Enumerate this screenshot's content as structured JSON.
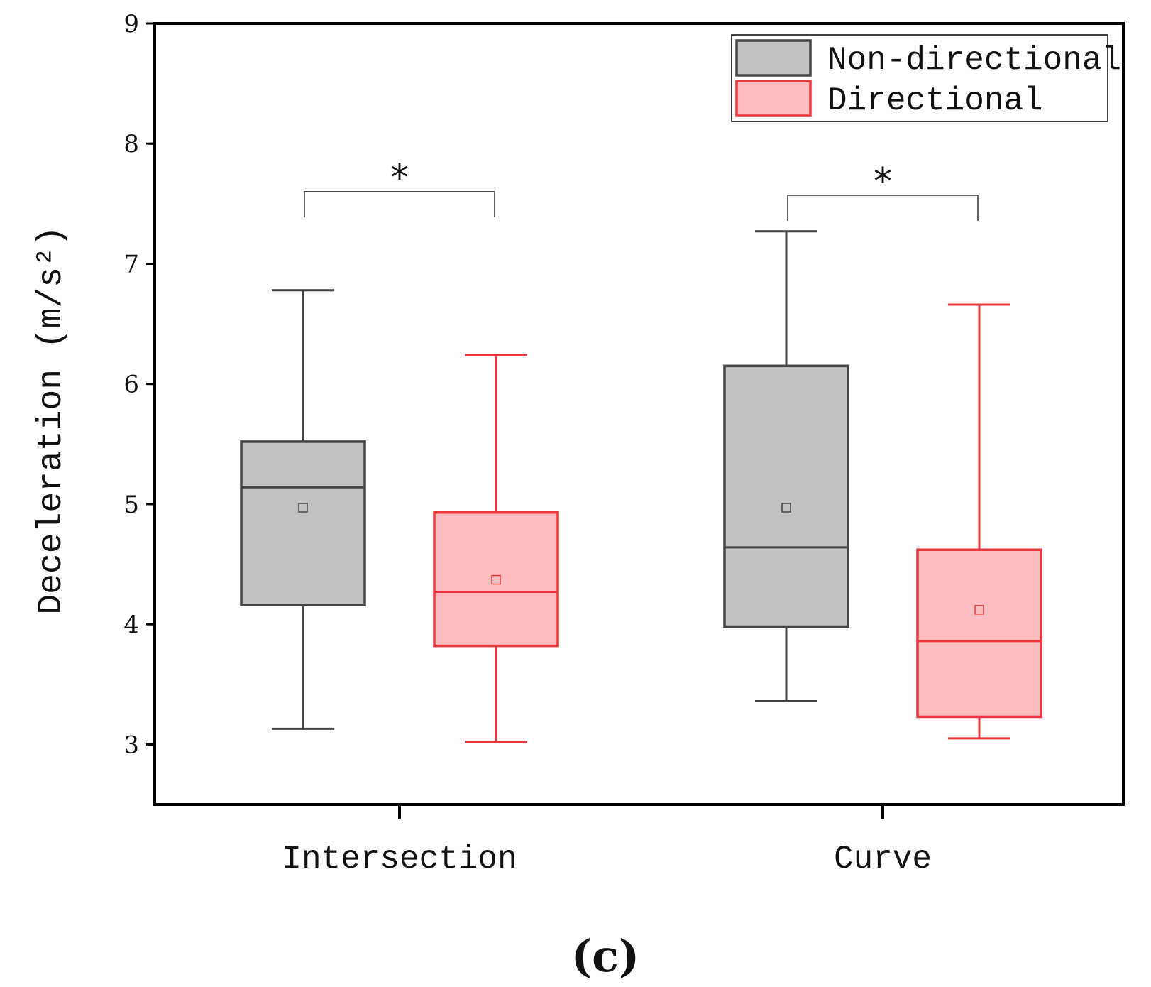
{
  "chart_data": {
    "type": "boxplot",
    "ylabel": "Deceleration (m/s²)",
    "ylim": [
      2.5,
      9
    ],
    "yticks": [
      "3",
      "4",
      "5",
      "6",
      "7",
      "8",
      "9"
    ],
    "categories": [
      "Intersection",
      "Curve"
    ],
    "legend": {
      "position": "top-right",
      "entries": [
        "Non-directional",
        "Directional"
      ]
    },
    "series": [
      {
        "name": "Non-directional",
        "fill": "#c2c2c2",
        "stroke": "#444444",
        "boxes": [
          {
            "category": "Intersection",
            "whisker_low": 3.13,
            "q1": 4.16,
            "median": 5.14,
            "q3": 5.52,
            "whisker_high": 6.78,
            "mean": 4.97
          },
          {
            "category": "Curve",
            "whisker_low": 3.36,
            "q1": 3.98,
            "median": 4.64,
            "q3": 6.15,
            "whisker_high": 7.27,
            "mean": 4.97
          }
        ]
      },
      {
        "name": "Directional",
        "fill": "#fdbcbf",
        "stroke": "#e8383d",
        "boxes": [
          {
            "category": "Intersection",
            "whisker_low": 3.02,
            "q1": 3.82,
            "median": 4.27,
            "q3": 4.93,
            "whisker_high": 6.24,
            "mean": 4.37
          },
          {
            "category": "Curve",
            "whisker_low": 3.05,
            "q1": 3.23,
            "median": 3.86,
            "q3": 4.62,
            "whisker_high": 6.66,
            "mean": 4.12
          }
        ]
      }
    ],
    "significance": [
      {
        "category": "Intersection",
        "marker": "*",
        "level": 7.6
      },
      {
        "category": "Curve",
        "marker": "*",
        "level": 7.57
      }
    ],
    "panel_label": "(c)"
  }
}
